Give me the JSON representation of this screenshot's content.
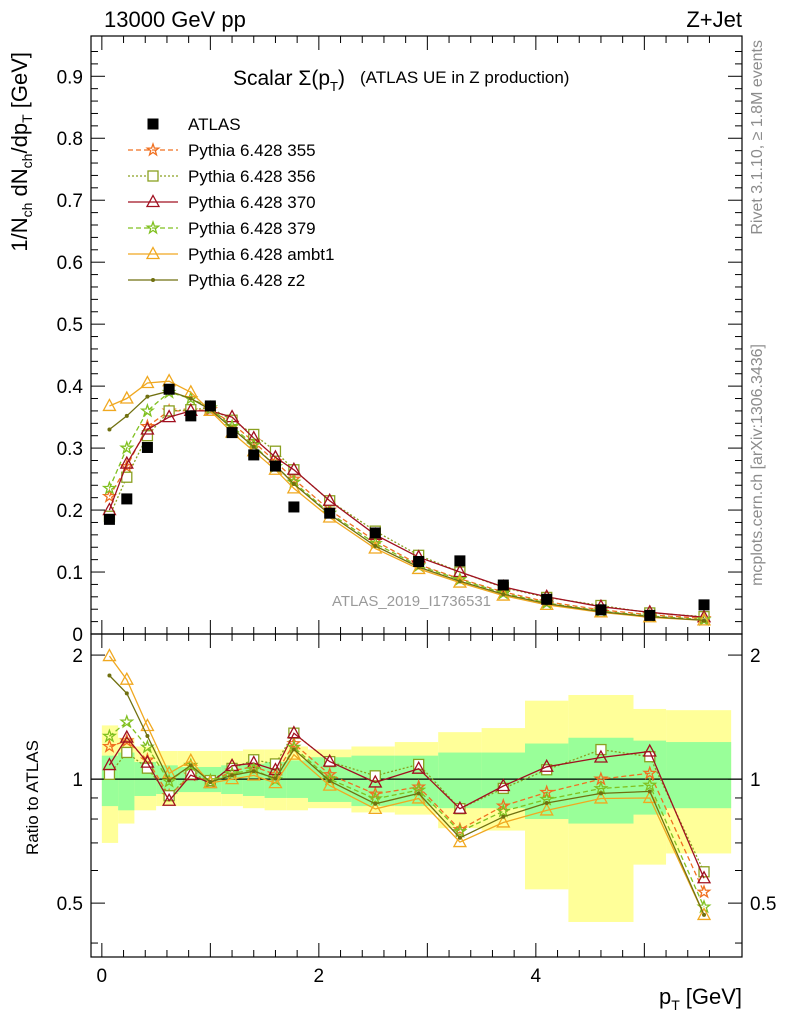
{
  "header": {
    "left": "13000 GeV pp",
    "right": "Z+Jet"
  },
  "side_labels": {
    "rivet": "Rivet 3.1.10, ≥ 1.8M events",
    "mcplots": "mcplots.cern.ch [arXiv:1306.3436]"
  },
  "watermark": "ATLAS_2019_I1736531",
  "chart_data": {
    "type": "scatter",
    "title_main": "Scalar Σ(p",
    "title_sub": "T",
    "title_close": ")",
    "title_suffix": "(ATLAS UE in Z production)",
    "xlabel": "p",
    "xlabel_sub": "T",
    "xlabel_unit": "[GeV]",
    "ylabel": "1/N_ch dN_ch/dp_T [GeV]",
    "ratio_ylabel": "Ratio to ATLAS",
    "xlim": [
      -0.1,
      5.9
    ],
    "ylim": [
      0,
      0.965
    ],
    "ratio_ylim": [
      0.37,
      2.25
    ],
    "x_ticks": [
      "0",
      "2",
      "4"
    ],
    "x_tick_values": [
      0,
      2,
      4
    ],
    "y_ticks": [
      "0",
      "0.1",
      "0.2",
      "0.3",
      "0.4",
      "0.5",
      "0.6",
      "0.7",
      "0.8",
      "0.9"
    ],
    "y_tick_values": [
      0,
      0.1,
      0.2,
      0.3,
      0.4,
      0.5,
      0.6,
      0.7,
      0.8,
      0.9
    ],
    "ratio_ticks": [
      "0.5",
      "1",
      "2"
    ],
    "ratio_tick_values": [
      0.5,
      1,
      2
    ],
    "bins": [
      [
        0,
        0.15
      ],
      [
        0.15,
        0.3
      ],
      [
        0.3,
        0.5
      ],
      [
        0.5,
        0.7
      ],
      [
        0.7,
        0.9
      ],
      [
        0.9,
        1.1
      ],
      [
        1.1,
        1.3
      ],
      [
        1.3,
        1.5
      ],
      [
        1.5,
        1.7
      ],
      [
        1.7,
        1.9
      ],
      [
        1.9,
        2.3
      ],
      [
        2.3,
        2.7
      ],
      [
        2.7,
        3.1
      ],
      [
        3.1,
        3.5
      ],
      [
        3.5,
        3.9
      ],
      [
        3.9,
        4.3
      ],
      [
        4.3,
        4.9
      ],
      [
        4.9,
        5.2
      ],
      [
        5.2,
        5.8
      ]
    ],
    "x": [
      0.07,
      0.23,
      0.42,
      0.62,
      0.82,
      1.0,
      1.2,
      1.4,
      1.6,
      1.77,
      2.1,
      2.52,
      2.92,
      3.3,
      3.7,
      4.1,
      4.6,
      5.05,
      5.55
    ],
    "data": {
      "name": "ATLAS",
      "values": [
        0.185,
        0.218,
        0.301,
        0.395,
        0.352,
        0.368,
        0.325,
        0.289,
        0.271,
        0.205,
        0.195,
        0.163,
        0.117,
        0.118,
        0.079,
        0.056,
        0.039,
        0.03,
        0.047
      ]
    },
    "band_green": [
      [
        0.86,
        1.14
      ],
      [
        0.84,
        1.16
      ],
      [
        0.91,
        1.1
      ],
      [
        0.92,
        1.08
      ],
      [
        0.93,
        1.07
      ],
      [
        0.93,
        1.07
      ],
      [
        0.92,
        1.08
      ],
      [
        0.91,
        1.09
      ],
      [
        0.9,
        1.1
      ],
      [
        0.9,
        1.11
      ],
      [
        0.88,
        1.13
      ],
      [
        0.86,
        1.14
      ],
      [
        0.86,
        1.14
      ],
      [
        0.85,
        1.16
      ],
      [
        0.85,
        1.16
      ],
      [
        0.8,
        1.22
      ],
      [
        0.78,
        1.26
      ],
      [
        0.82,
        1.24
      ],
      [
        0.85,
        1.23
      ]
    ],
    "band_yellow": [
      [
        0.7,
        1.35
      ],
      [
        0.78,
        1.26
      ],
      [
        0.84,
        1.2
      ],
      [
        0.86,
        1.17
      ],
      [
        0.86,
        1.17
      ],
      [
        0.86,
        1.17
      ],
      [
        0.86,
        1.17
      ],
      [
        0.85,
        1.18
      ],
      [
        0.84,
        1.18
      ],
      [
        0.84,
        1.2
      ],
      [
        0.85,
        1.18
      ],
      [
        0.83,
        1.2
      ],
      [
        0.82,
        1.23
      ],
      [
        0.76,
        1.3
      ],
      [
        0.75,
        1.33
      ],
      [
        0.54,
        1.55
      ],
      [
        0.45,
        1.6
      ],
      [
        0.62,
        1.48
      ],
      [
        0.66,
        1.47
      ]
    ],
    "series": [
      {
        "name": "Pythia 6.428 355",
        "color": "#f07020",
        "dash": "5,3",
        "marker": "star",
        "values": [
          0.222,
          0.27,
          0.335,
          0.36,
          0.36,
          0.362,
          0.34,
          0.31,
          0.278,
          0.25,
          0.2,
          0.15,
          0.112,
          0.089,
          0.068,
          0.052,
          0.039,
          0.031,
          0.025
        ]
      },
      {
        "name": "Pythia 6.428 356",
        "color": "#8aa020",
        "dash": "2,2",
        "marker": "square-open",
        "values": [
          0.19,
          0.253,
          0.32,
          0.36,
          0.362,
          0.365,
          0.345,
          0.322,
          0.295,
          0.265,
          0.215,
          0.166,
          0.127,
          0.1,
          0.075,
          0.059,
          0.046,
          0.034,
          0.028
        ]
      },
      {
        "name": "Pythia 6.428 370",
        "color": "#a01020",
        "dash": "",
        "marker": "triangle-open",
        "values": [
          0.2,
          0.275,
          0.33,
          0.35,
          0.36,
          0.36,
          0.35,
          0.316,
          0.285,
          0.265,
          0.215,
          0.16,
          0.124,
          0.1,
          0.076,
          0.06,
          0.044,
          0.035,
          0.027
        ]
      },
      {
        "name": "Pythia 6.428 379",
        "color": "#80c020",
        "dash": "5,3",
        "marker": "star",
        "values": [
          0.235,
          0.3,
          0.36,
          0.39,
          0.38,
          0.365,
          0.335,
          0.305,
          0.27,
          0.245,
          0.195,
          0.146,
          0.11,
          0.088,
          0.066,
          0.05,
          0.037,
          0.029,
          0.023
        ]
      },
      {
        "name": "Pythia 6.428 ambt1",
        "color": "#f0a820",
        "dash": "",
        "marker": "triangle-open",
        "values": [
          0.368,
          0.38,
          0.405,
          0.408,
          0.39,
          0.36,
          0.325,
          0.295,
          0.265,
          0.235,
          0.188,
          0.138,
          0.105,
          0.083,
          0.062,
          0.047,
          0.035,
          0.027,
          0.022
        ]
      },
      {
        "name": "Pythia 6.428 z2",
        "color": "#707010",
        "dash": "",
        "marker": "dot",
        "values": [
          0.33,
          0.352,
          0.383,
          0.392,
          0.38,
          0.362,
          0.332,
          0.302,
          0.272,
          0.242,
          0.193,
          0.142,
          0.108,
          0.085,
          0.064,
          0.049,
          0.036,
          0.028,
          0.022
        ]
      }
    ]
  }
}
